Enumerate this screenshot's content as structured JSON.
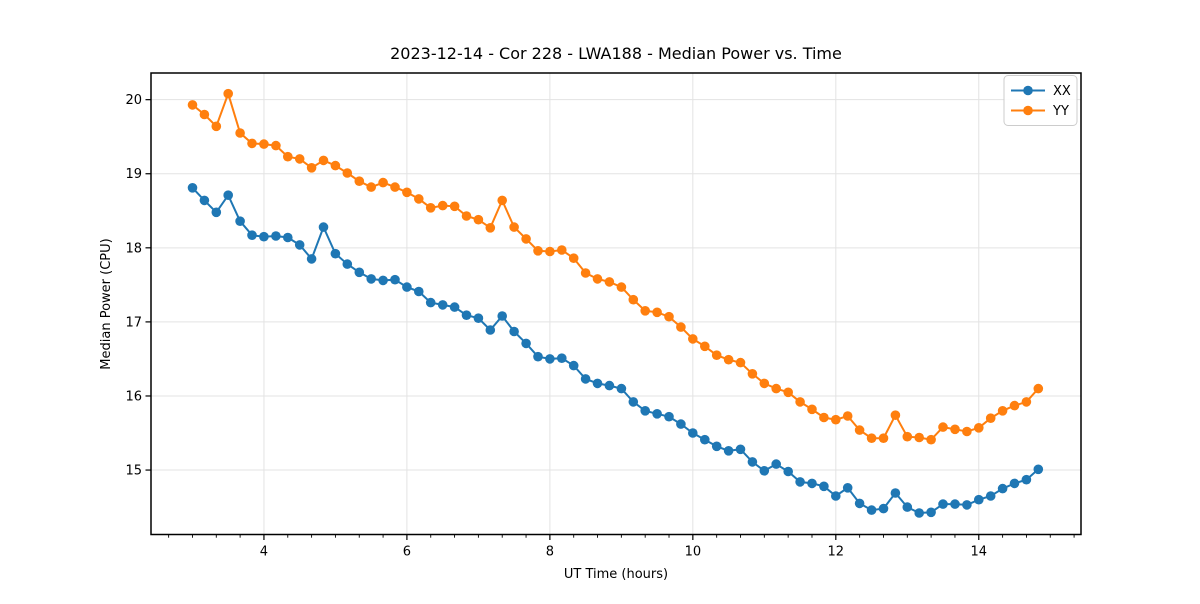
{
  "chart_data": {
    "type": "line",
    "title": "2023-12-14 - Cor 228 - LWA188 - Median Power vs. Time",
    "xlabel": "UT Time (hours)",
    "ylabel": "Median Power (CPU)",
    "xlim": [
      2.42,
      15.43
    ],
    "ylim": [
      14.13,
      20.36
    ],
    "x_major_ticks": [
      4,
      6,
      8,
      10,
      12,
      14
    ],
    "x_minor_tick_step": 0.3333,
    "y_major_ticks": [
      15,
      16,
      17,
      18,
      19,
      20
    ],
    "grid": true,
    "grid_color": "#e3e3e3",
    "legend_position": "upper right",
    "x_start": 3.0,
    "x_step": 0.166667,
    "series": [
      {
        "name": "XX",
        "color": "#1f77b4",
        "values": [
          18.81,
          18.64,
          18.48,
          18.71,
          18.36,
          18.17,
          18.15,
          18.16,
          18.14,
          18.04,
          17.85,
          18.28,
          17.92,
          17.78,
          17.67,
          17.58,
          17.56,
          17.57,
          17.47,
          17.41,
          17.26,
          17.23,
          17.2,
          17.09,
          17.05,
          16.89,
          17.08,
          16.87,
          16.71,
          16.53,
          16.5,
          16.51,
          16.41,
          16.23,
          16.17,
          16.14,
          16.1,
          15.92,
          15.8,
          15.76,
          15.72,
          15.62,
          15.5,
          15.41,
          15.32,
          15.26,
          15.28,
          15.11,
          14.99,
          15.08,
          14.98,
          14.84,
          14.82,
          14.78,
          14.65,
          14.76,
          14.55,
          14.46,
          14.48,
          14.69,
          14.5,
          14.42,
          14.43,
          14.54,
          14.54,
          14.53,
          14.6,
          14.65,
          14.75,
          14.82,
          14.87,
          15.01
        ]
      },
      {
        "name": "YY",
        "color": "#ff7f0e",
        "values": [
          19.93,
          19.8,
          19.64,
          20.08,
          19.55,
          19.41,
          19.4,
          19.38,
          19.23,
          19.2,
          19.08,
          19.18,
          19.11,
          19.01,
          18.9,
          18.82,
          18.88,
          18.82,
          18.75,
          18.66,
          18.54,
          18.57,
          18.56,
          18.43,
          18.38,
          18.27,
          18.64,
          18.28,
          18.12,
          17.96,
          17.95,
          17.97,
          17.86,
          17.66,
          17.58,
          17.54,
          17.47,
          17.3,
          17.15,
          17.13,
          17.07,
          16.93,
          16.77,
          16.67,
          16.55,
          16.49,
          16.45,
          16.3,
          16.17,
          16.1,
          16.05,
          15.92,
          15.82,
          15.71,
          15.68,
          15.73,
          15.54,
          15.43,
          15.43,
          15.74,
          15.45,
          15.44,
          15.41,
          15.58,
          15.55,
          15.52,
          15.57,
          15.7,
          15.8,
          15.87,
          15.92,
          16.1
        ]
      }
    ]
  }
}
